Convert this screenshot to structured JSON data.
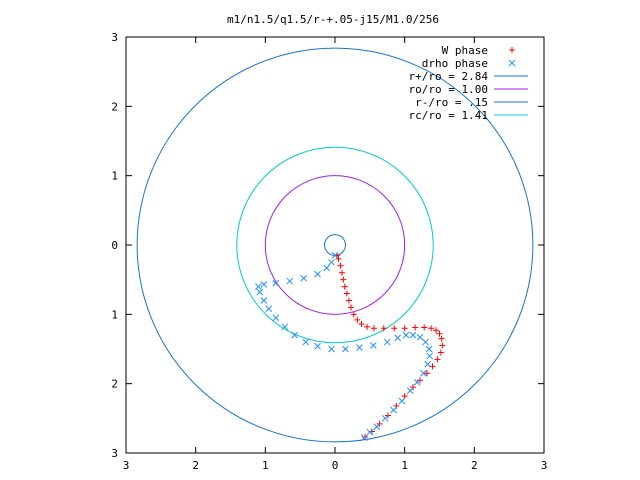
{
  "chart_data": {
    "type": "scatter",
    "title": "m1/n1.5/q1.5/r-+.05-j15/M1.0/256",
    "xlim": [
      -3,
      3
    ],
    "ylim": [
      -3,
      3
    ],
    "x_ticks": [
      -3,
      -2,
      -1,
      0,
      1,
      2,
      3
    ],
    "y_ticks": [
      -3,
      -2,
      -1,
      0,
      1,
      2,
      3
    ],
    "x_tick_labels": [
      "3",
      "2",
      "1",
      "0",
      "1",
      "2",
      "3"
    ],
    "y_tick_labels": [
      "3",
      "2",
      "1",
      "0",
      "1",
      "2",
      "3"
    ],
    "grid": false,
    "legend_position": "top-right",
    "circles": [
      {
        "name": "r+/ro = 2.84",
        "radius": 2.84,
        "color": "#1874cd"
      },
      {
        "name": "ro/ro = 1.00",
        "radius": 1.0,
        "color": "#a020f0"
      },
      {
        "name": "r-/ro = .15",
        "radius": 0.15,
        "color": "#1874cd"
      },
      {
        "name": "rc/ro = 1.41",
        "radius": 1.41,
        "color": "#00cccc"
      }
    ],
    "series": [
      {
        "name": "W phase",
        "marker": "+",
        "color": "#ff0000",
        "points": [
          [
            0.03,
            -0.15
          ],
          [
            0.05,
            -0.2
          ],
          [
            0.08,
            -0.3
          ],
          [
            0.1,
            -0.4
          ],
          [
            0.12,
            -0.5
          ],
          [
            0.14,
            -0.6
          ],
          [
            0.17,
            -0.7
          ],
          [
            0.2,
            -0.8
          ],
          [
            0.23,
            -0.9
          ],
          [
            0.27,
            -1.0
          ],
          [
            0.32,
            -1.08
          ],
          [
            0.38,
            -1.14
          ],
          [
            0.46,
            -1.18
          ],
          [
            0.56,
            -1.2
          ],
          [
            0.7,
            -1.2
          ],
          [
            0.85,
            -1.2
          ],
          [
            1.0,
            -1.2
          ],
          [
            1.15,
            -1.19
          ],
          [
            1.28,
            -1.19
          ],
          [
            1.38,
            -1.2
          ],
          [
            1.45,
            -1.23
          ],
          [
            1.5,
            -1.28
          ],
          [
            1.53,
            -1.35
          ],
          [
            1.54,
            -1.45
          ],
          [
            1.52,
            -1.55
          ],
          [
            1.47,
            -1.65
          ],
          [
            1.4,
            -1.75
          ],
          [
            1.32,
            -1.85
          ],
          [
            1.22,
            -1.95
          ],
          [
            1.12,
            -2.05
          ],
          [
            1.0,
            -2.18
          ],
          [
            0.88,
            -2.32
          ],
          [
            0.76,
            -2.46
          ],
          [
            0.64,
            -2.58
          ],
          [
            0.53,
            -2.69
          ],
          [
            0.43,
            -2.77
          ]
        ]
      },
      {
        "name": "drho phase",
        "marker": "x",
        "color": "#1e90ff",
        "points": [
          [
            0.0,
            -0.15
          ],
          [
            -0.05,
            -0.25
          ],
          [
            -0.12,
            -0.33
          ],
          [
            -0.25,
            -0.42
          ],
          [
            -0.45,
            -0.48
          ],
          [
            -0.65,
            -0.52
          ],
          [
            -0.85,
            -0.55
          ],
          [
            -1.02,
            -0.57
          ],
          [
            -1.1,
            -0.6
          ],
          [
            -1.08,
            -0.68
          ],
          [
            -1.02,
            -0.8
          ],
          [
            -0.95,
            -0.92
          ],
          [
            -0.85,
            -1.05
          ],
          [
            -0.72,
            -1.18
          ],
          [
            -0.58,
            -1.3
          ],
          [
            -0.42,
            -1.4
          ],
          [
            -0.25,
            -1.46
          ],
          [
            -0.05,
            -1.5
          ],
          [
            0.15,
            -1.5
          ],
          [
            0.35,
            -1.48
          ],
          [
            0.55,
            -1.45
          ],
          [
            0.75,
            -1.4
          ],
          [
            0.9,
            -1.34
          ],
          [
            1.02,
            -1.3
          ],
          [
            1.12,
            -1.3
          ],
          [
            1.22,
            -1.33
          ],
          [
            1.3,
            -1.4
          ],
          [
            1.35,
            -1.5
          ],
          [
            1.36,
            -1.6
          ],
          [
            1.33,
            -1.72
          ],
          [
            1.27,
            -1.85
          ],
          [
            1.18,
            -1.98
          ],
          [
            1.08,
            -2.1
          ],
          [
            0.96,
            -2.25
          ],
          [
            0.84,
            -2.38
          ],
          [
            0.72,
            -2.5
          ],
          [
            0.6,
            -2.62
          ],
          [
            0.5,
            -2.7
          ],
          [
            0.42,
            -2.78
          ]
        ]
      }
    ]
  }
}
